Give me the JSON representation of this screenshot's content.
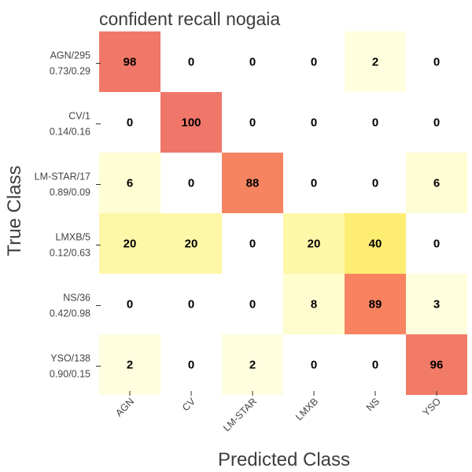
{
  "chart_data": {
    "type": "heatmap",
    "title": "confident recall nogaia",
    "xlabel": "Predicted Class",
    "ylabel": "True Class",
    "columns": [
      "AGN",
      "CV",
      "LM-STAR",
      "LMXB",
      "NS",
      "YSO"
    ],
    "rows": [
      {
        "label": "AGN/295",
        "sublabel": "0.73/0.29"
      },
      {
        "label": "CV/1",
        "sublabel": "0.14/0.16"
      },
      {
        "label": "LM-STAR/17",
        "sublabel": "0.89/0.09"
      },
      {
        "label": "LMXB/5",
        "sublabel": "0.12/0.63"
      },
      {
        "label": "NS/36",
        "sublabel": "0.42/0.98"
      },
      {
        "label": "YSO/138",
        "sublabel": "0.90/0.15"
      }
    ],
    "values": [
      [
        98,
        0,
        0,
        0,
        2,
        0
      ],
      [
        0,
        100,
        0,
        0,
        0,
        0
      ],
      [
        6,
        0,
        88,
        0,
        0,
        6
      ],
      [
        20,
        20,
        0,
        20,
        40,
        0
      ],
      [
        0,
        0,
        0,
        8,
        89,
        3
      ],
      [
        2,
        0,
        2,
        0,
        0,
        96
      ]
    ],
    "colormap": [
      "#ffffe5",
      "#fff7a8",
      "#feed73",
      "#fec760",
      "#fc8d59",
      "#f0766a"
    ],
    "value_range": [
      0,
      100
    ]
  }
}
